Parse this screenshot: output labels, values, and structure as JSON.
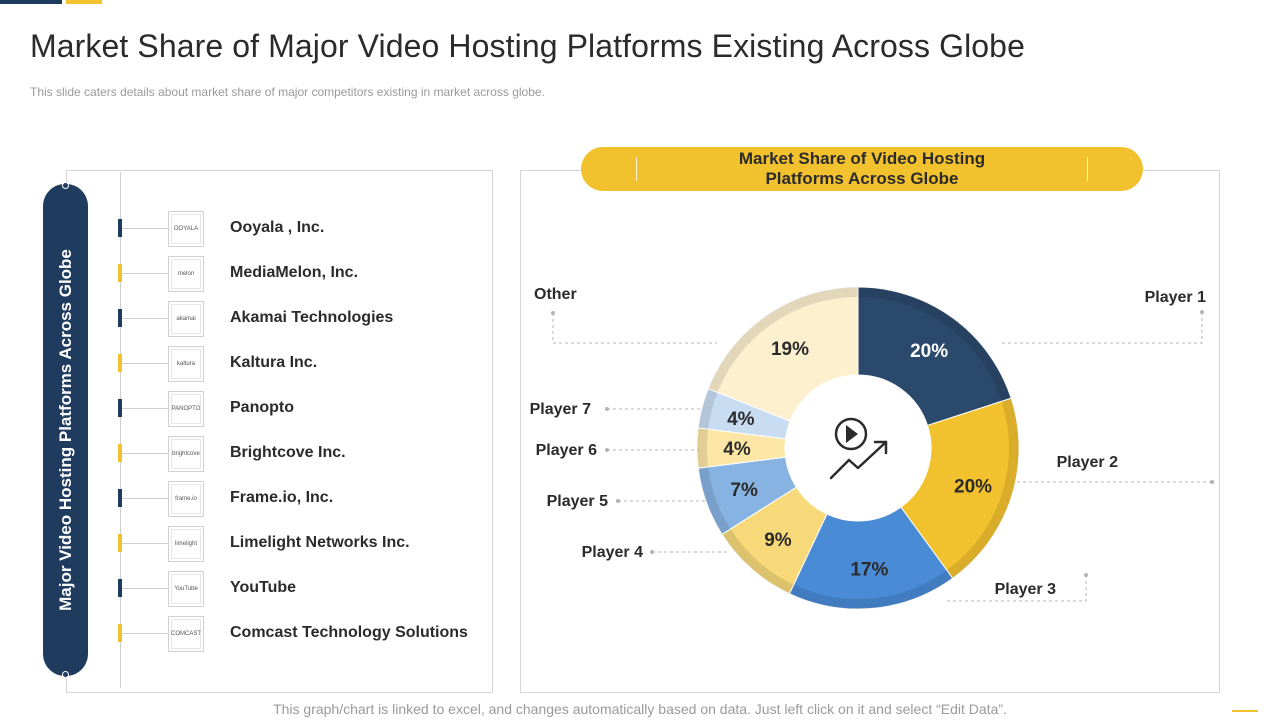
{
  "page": {
    "title": "Market Share of Major Video Hosting Platforms Existing Across Globe",
    "subtitle": "This slide caters details about market share of major competitors existing in market across globe.",
    "footer": "This graph/chart is linked to excel, and changes automatically based on data. Just left click on it and select “Edit Data”."
  },
  "left_panel": {
    "vertical_title": "Major Video Hosting Platforms Across Globe",
    "companies": [
      {
        "name": "Ooyala , Inc.",
        "logo": "ooyala-logo",
        "logo_text": "OOYALA",
        "tick_color": "#1f3b5e"
      },
      {
        "name": "MediaMelon, Inc.",
        "logo": "mediamelon-logo",
        "logo_text": "melon",
        "tick_color": "#f2c12e"
      },
      {
        "name": "Akamai Technologies",
        "logo": "akamai-logo",
        "logo_text": "akamai",
        "tick_color": "#1f3b5e"
      },
      {
        "name": "Kaltura Inc.",
        "logo": "kaltura-logo",
        "logo_text": "kaltura",
        "tick_color": "#f2c12e"
      },
      {
        "name": "Panopto",
        "logo": "panopto-logo",
        "logo_text": "PANOPTO",
        "tick_color": "#1f3b5e"
      },
      {
        "name": "Brightcove Inc.",
        "logo": "brightcove-logo",
        "logo_text": "brightcove",
        "tick_color": "#f2c12e"
      },
      {
        "name": "Frame.io, Inc.",
        "logo": "frameio-logo",
        "logo_text": "frame.io",
        "tick_color": "#1f3b5e"
      },
      {
        "name": "Limelight Networks Inc.",
        "logo": "limelight-logo",
        "logo_text": "limelight",
        "tick_color": "#f2c12e"
      },
      {
        "name": "YouTube",
        "logo": "youtube-logo",
        "logo_text": "YouTube",
        "tick_color": "#1f3b5e"
      },
      {
        "name": "Comcast Technology Solutions",
        "logo": "comcast-logo",
        "logo_text": "COMCAST",
        "tick_color": "#f2c12e"
      }
    ]
  },
  "chart_data": {
    "type": "pie",
    "variant": "donut",
    "title": "Market Share of Video Hosting Platforms Across Globe",
    "center_icon": "play-growth-icon",
    "categories": [
      "Player 1",
      "Player 2",
      "Player 3",
      "Player 4",
      "Player 5",
      "Player 6",
      "Player 7",
      "Other"
    ],
    "values": [
      20,
      20,
      17,
      9,
      7,
      4,
      4,
      19
    ],
    "value_labels": [
      "20%",
      "20%",
      "17%",
      "9%",
      "7%",
      "4%",
      "4%",
      "19%"
    ],
    "colors": [
      "#2b4a6b",
      "#f2c12e",
      "#4a8bd6",
      "#f7d97a",
      "#86b3e2",
      "#fbe6a6",
      "#c8dcf2",
      "#fcf0cf"
    ],
    "text_colors": [
      "#ffffff",
      "#2b2b2b",
      "#2b2b2b",
      "#2b2b2b",
      "#2b2b2b",
      "#2b2b2b",
      "#2b2b2b",
      "#2b2b2b"
    ],
    "legend": "callouts"
  }
}
